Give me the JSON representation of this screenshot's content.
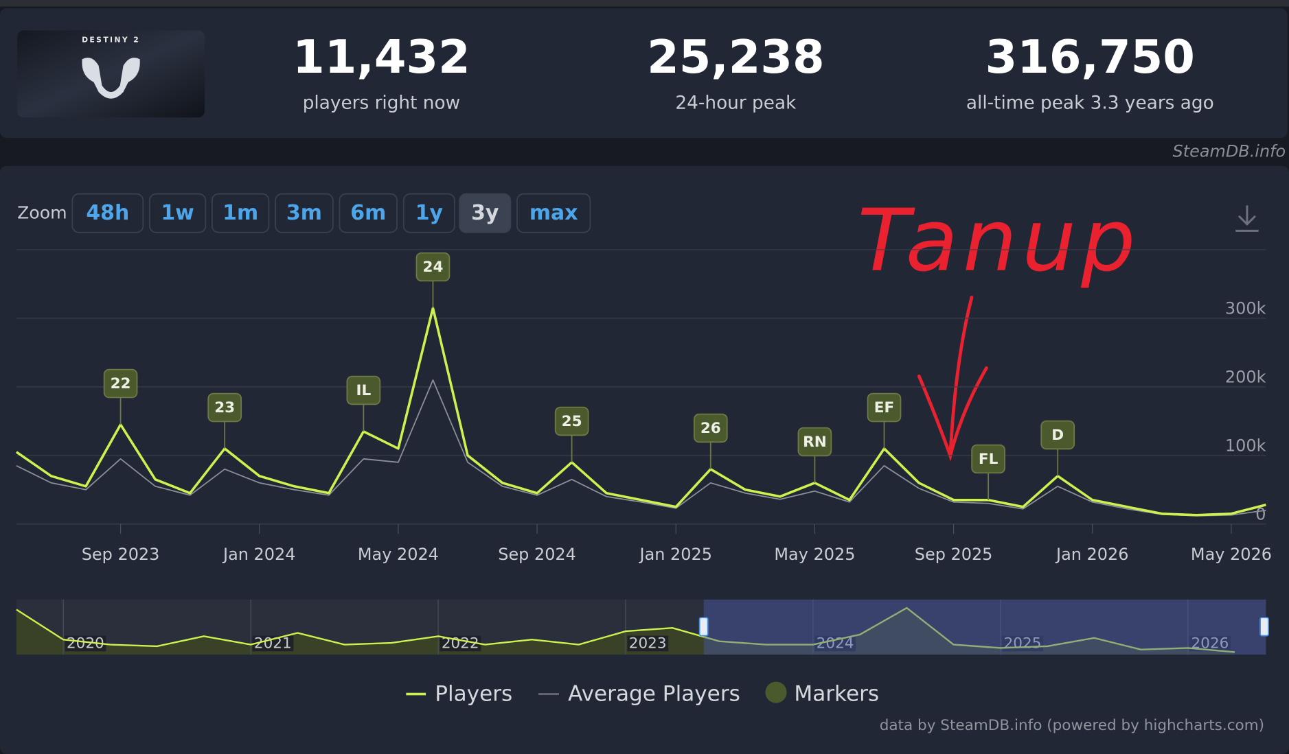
{
  "header": {
    "logo_text": "DESTINY 2",
    "stats": [
      {
        "value": "11,432",
        "label": "players right now"
      },
      {
        "value": "25,238",
        "label": "24-hour peak"
      },
      {
        "value": "316,750",
        "label": "all-time peak 3.3 years ago"
      }
    ]
  },
  "watermark": "SteamDB.info",
  "zoom": {
    "label": "Zoom",
    "buttons": [
      "48h",
      "1w",
      "1m",
      "3m",
      "6m",
      "1y",
      "3y",
      "max"
    ],
    "active": 6
  },
  "chart_data": {
    "type": "line",
    "x": [
      "2023-06",
      "2023-07",
      "2023-08",
      "2023-09",
      "2023-10",
      "2023-11",
      "2023-12",
      "2024-01",
      "2024-02",
      "2024-03",
      "2024-04",
      "2024-05",
      "2024-06",
      "2024-07",
      "2024-08",
      "2024-09",
      "2024-10",
      "2024-11",
      "2024-12",
      "2025-01",
      "2025-02",
      "2025-03",
      "2025-04",
      "2025-05",
      "2025-06",
      "2025-07",
      "2025-08",
      "2025-09",
      "2025-10",
      "2025-11",
      "2025-12",
      "2026-01",
      "2026-02",
      "2026-03",
      "2026-04",
      "2026-05",
      "2026-06"
    ],
    "series": [
      {
        "name": "Players",
        "color": "#cdf24f",
        "values": [
          105000,
          70000,
          55000,
          145000,
          65000,
          45000,
          110000,
          70000,
          55000,
          45000,
          135000,
          110000,
          315000,
          100000,
          60000,
          45000,
          90000,
          45000,
          35000,
          25000,
          80000,
          50000,
          40000,
          60000,
          35000,
          110000,
          60000,
          35000,
          35000,
          25000,
          70000,
          35000,
          25000,
          15000,
          13000,
          15000,
          28000
        ]
      },
      {
        "name": "Average Players",
        "color": "#8b8f98",
        "values": [
          85000,
          60000,
          50000,
          95000,
          55000,
          42000,
          80000,
          60000,
          50000,
          42000,
          95000,
          90000,
          210000,
          90000,
          55000,
          42000,
          65000,
          40000,
          32000,
          23000,
          60000,
          45000,
          36000,
          48000,
          32000,
          85000,
          52000,
          32000,
          30000,
          22000,
          55000,
          32000,
          22000,
          14000,
          12000,
          13000,
          20000
        ]
      }
    ],
    "markers": {
      "name": "Markers",
      "color": "#4a5a2c",
      "items": [
        {
          "label": "22",
          "x": "2023-09"
        },
        {
          "label": "23",
          "x": "2023-12"
        },
        {
          "label": "IL",
          "x": "2024-04"
        },
        {
          "label": "24",
          "x": "2024-06"
        },
        {
          "label": "25",
          "x": "2024-10"
        },
        {
          "label": "26",
          "x": "2025-02"
        },
        {
          "label": "RN",
          "x": "2025-05"
        },
        {
          "label": "EF",
          "x": "2025-07"
        },
        {
          "label": "FL",
          "x": "2025-10"
        },
        {
          "label": "D",
          "x": "2025-12"
        }
      ]
    },
    "xlim": [
      "2023-06",
      "2026-06"
    ],
    "xticks": [
      {
        "value": "2023-09",
        "label": "Sep 2023"
      },
      {
        "value": "2024-01",
        "label": "Jan 2024"
      },
      {
        "value": "2024-05",
        "label": "May 2024"
      },
      {
        "value": "2024-09",
        "label": "Sep 2024"
      },
      {
        "value": "2025-01",
        "label": "Jan 2025"
      },
      {
        "value": "2025-05",
        "label": "May 2025"
      },
      {
        "value": "2025-09",
        "label": "Sep 2025"
      },
      {
        "value": "2026-01",
        "label": "Jan 2026"
      },
      {
        "value": "2026-05",
        "label": "May 2026"
      }
    ],
    "ylim": [
      0,
      400000
    ],
    "yticks": [
      0,
      {
        "value": 100000,
        "label": "100k"
      },
      {
        "value": 200000,
        "label": "200k"
      },
      {
        "value": 300000,
        "label": "300k"
      }
    ],
    "grid": true,
    "annotation": "Tanup",
    "navigator": {
      "x": [
        "2019-10",
        "2020-01",
        "2020-04",
        "2020-07",
        "2020-10",
        "2021-01",
        "2021-04",
        "2021-07",
        "2021-10",
        "2022-01",
        "2022-04",
        "2022-07",
        "2022-10",
        "2023-01",
        "2023-04",
        "2023-07",
        "2023-10",
        "2024-01",
        "2024-04",
        "2024-07",
        "2024-10",
        "2025-01",
        "2025-04",
        "2025-07",
        "2025-10",
        "2026-01",
        "2026-04"
      ],
      "values": [
        270000,
        90000,
        60000,
        50000,
        110000,
        60000,
        130000,
        60000,
        70000,
        110000,
        60000,
        90000,
        60000,
        140000,
        160000,
        80000,
        60000,
        60000,
        120000,
        280000,
        60000,
        40000,
        50000,
        100000,
        30000,
        40000,
        15000
      ],
      "xlim": [
        "2019-10",
        "2026-06"
      ],
      "ylim": [
        0,
        330000
      ],
      "xticks": [
        {
          "value": "2020-01",
          "label": "2020"
        },
        {
          "value": "2021-01",
          "label": "2021"
        },
        {
          "value": "2022-01",
          "label": "2022"
        },
        {
          "value": "2023-01",
          "label": "2023"
        },
        {
          "value": "2024-01",
          "label": "2024"
        },
        {
          "value": "2025-01",
          "label": "2025"
        },
        {
          "value": "2026-01",
          "label": "2026"
        }
      ]
    }
  },
  "credits": "data by SteamDB.info (powered by highcharts.com)"
}
